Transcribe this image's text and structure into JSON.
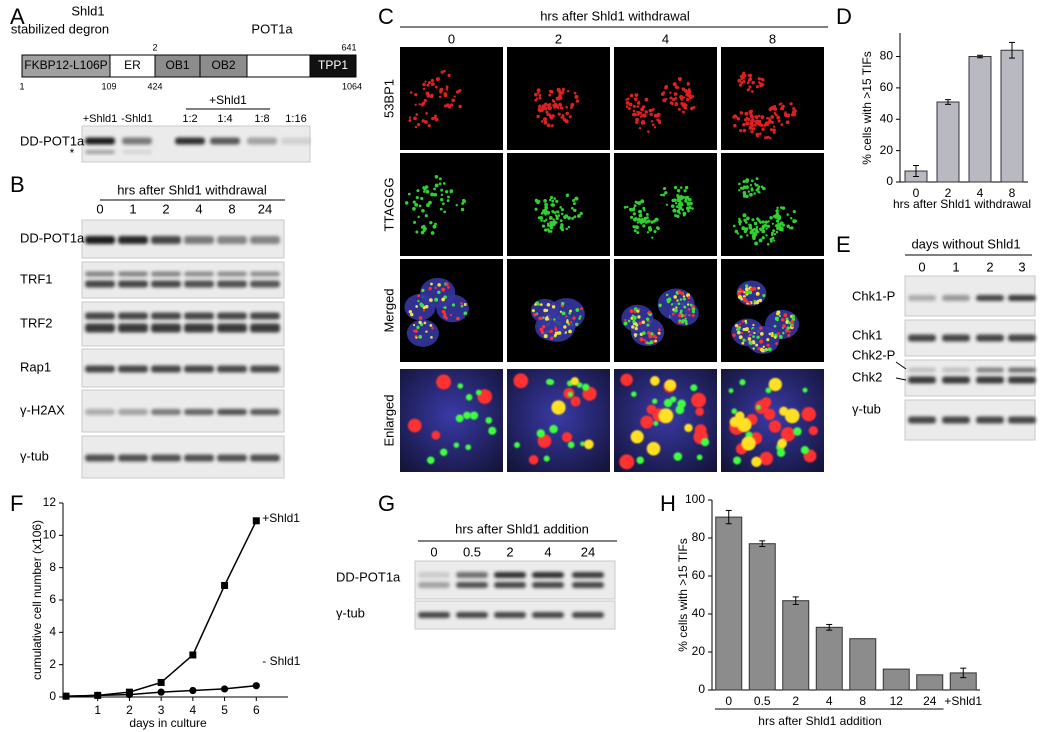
{
  "panel_labels": [
    "A",
    "B",
    "C",
    "D",
    "E",
    "F",
    "G",
    "H"
  ],
  "domain_map": {
    "title": "Shld1",
    "subtitle": "stabilized degron",
    "protein": "POT1a",
    "domains": [
      "FKBP12-L106P",
      "ER",
      "OB1",
      "OB2",
      "TPP1"
    ],
    "positions_below": [
      "1",
      "109",
      "424",
      "1064"
    ],
    "positions_above": [
      "2",
      "641"
    ]
  },
  "blot_a": {
    "group": "+Shld1",
    "lanes": [
      "+Shld1",
      "-Shld1",
      "1:2",
      "1:4",
      "1:8",
      "1:16"
    ],
    "rows": [
      "DD-POT1a"
    ],
    "marker": "*"
  },
  "blot_b": {
    "title": "hrs after Shld1 withdrawal",
    "lanes": [
      "0",
      "1",
      "2",
      "4",
      "8",
      "24"
    ],
    "rows": [
      "DD-POT1a",
      "TRF1",
      "TRF2",
      "Rap1",
      "γ-H2AX",
      "γ-tub"
    ]
  },
  "microscopy_c": {
    "title": "hrs after Shld1 withdrawal",
    "columns": [
      "0",
      "2",
      "4",
      "8"
    ],
    "rows": [
      "53BP1",
      "TTAGGG",
      "Merged",
      "Enlarged"
    ]
  },
  "blot_e": {
    "title": "days without Shld1",
    "lanes": [
      "0",
      "1",
      "2",
      "3"
    ],
    "rows": [
      "Chk1-P",
      "Chk1",
      "Chk2-P",
      "Chk2",
      "γ-tub"
    ]
  },
  "blot_g": {
    "title": "hrs after Shld1 addition",
    "lanes": [
      "0",
      "0.5",
      "2",
      "4",
      "24"
    ],
    "rows": [
      "DD-POT1a",
      "γ-tub"
    ]
  },
  "chart_data": [
    {
      "type": "bar",
      "categories": [
        "0",
        "2",
        "4",
        "8"
      ],
      "values": [
        7,
        51,
        80,
        84
      ],
      "errors": [
        3.5,
        1.5,
        0.8,
        5
      ],
      "color": "#b9b9c2",
      "ylim": [
        0,
        95
      ],
      "yticks": [
        0,
        20,
        40,
        60,
        80
      ],
      "xlabel": "hrs after Shld1 withdrawal",
      "ylabel": "% cells with >15 TIFs"
    },
    {
      "type": "line",
      "x": [
        0,
        1,
        2,
        3,
        4,
        5,
        6
      ],
      "xlim": [
        0,
        7
      ],
      "xticks": [
        1,
        2,
        3,
        4,
        5,
        6
      ],
      "ylim": [
        0,
        12
      ],
      "yticks": [
        0,
        2,
        4,
        6,
        8,
        10,
        12
      ],
      "xlabel": "days in culture",
      "ylabel": "cumulative cell number (x106)",
      "series": [
        {
          "name": "+Shld1",
          "color": "#000000",
          "marker": "square",
          "values": [
            0.05,
            0.1,
            0.3,
            0.9,
            2.6,
            6.9,
            10.9
          ]
        },
        {
          "name": "- Shld1",
          "color": "#000000",
          "marker": "circle",
          "values": [
            0.05,
            0.1,
            0.15,
            0.3,
            0.4,
            0.5,
            0.7
          ]
        }
      ]
    },
    {
      "type": "bar",
      "categories": [
        "0",
        "0.5",
        "2",
        "4",
        "8",
        "12",
        "24",
        "+Shld1"
      ],
      "values": [
        91,
        77,
        47,
        33,
        27,
        11,
        8,
        9
      ],
      "errors": [
        3.5,
        1.5,
        2,
        1.5,
        null,
        null,
        null,
        2.5
      ],
      "color": "#8c8c8c",
      "ylim": [
        0,
        100
      ],
      "yticks": [
        0,
        20,
        40,
        60,
        80,
        100
      ],
      "xlabel": "hrs after Shld1 addition",
      "ylabel": "% cells with >15 TIFs"
    }
  ]
}
